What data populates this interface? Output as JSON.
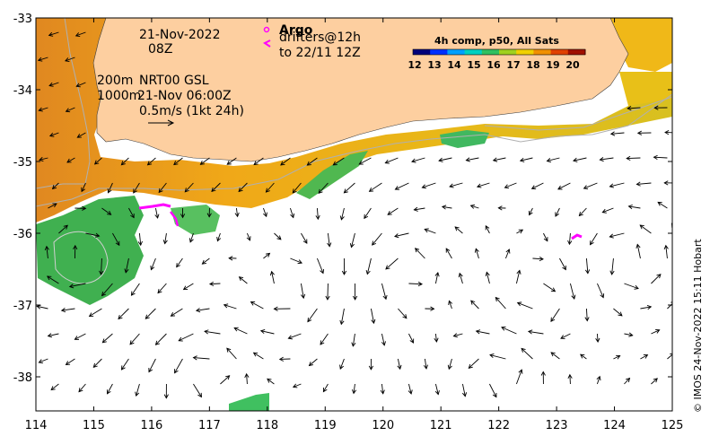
{
  "map": {
    "annotations": {
      "date": "21-Nov-2022",
      "time": "08Z",
      "contour_200": "200m",
      "contour_1000": "1000m",
      "source": "NRT00 GSL",
      "valid": "21-Nov 06:00Z",
      "scale": "0.5m/s (1kt 24h)",
      "argo": "Argo",
      "drifters": "drifters@12h",
      "drifters_to": "to 22/11 12Z"
    },
    "colorbar": {
      "title": "4h comp, p50, All Sats",
      "ticks": [
        "12",
        "13",
        "14",
        "15",
        "16",
        "17",
        "18",
        "19",
        "20"
      ],
      "colors": [
        "#00007a",
        "#0030ff",
        "#00a0ff",
        "#00d0c0",
        "#30c060",
        "#a0d020",
        "#f0d000",
        "#f09000",
        "#e04000",
        "#a01000"
      ]
    },
    "axes": {
      "x_ticks": [
        "114",
        "115",
        "116",
        "117",
        "118",
        "119",
        "120",
        "121",
        "122",
        "123",
        "124",
        "125"
      ],
      "y_ticks": [
        "-33",
        "-34",
        "-35",
        "-36",
        "-37",
        "-38"
      ]
    },
    "credit": "© IMOS 24-Nov-2022 15:11 Hobart",
    "colors": {
      "land": "#fdcfa0",
      "contour": "#b0b0b0",
      "drifter": "#ff00ff"
    }
  }
}
